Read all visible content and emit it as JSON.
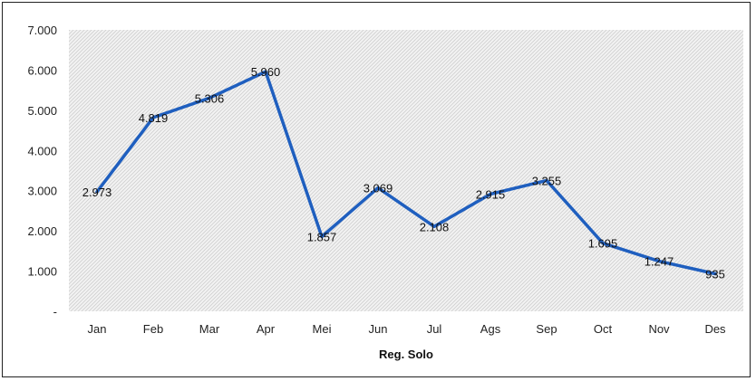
{
  "chart_data": {
    "type": "line",
    "title": "",
    "xlabel": "Reg. Solo",
    "ylabel": "",
    "categories": [
      "Jan",
      "Feb",
      "Mar",
      "Apr",
      "Mei",
      "Jun",
      "Jul",
      "Ags",
      "Sep",
      "Oct",
      "Nov",
      "Des"
    ],
    "series": [
      {
        "values": [
          2973,
          4819,
          5306,
          5960,
          1857,
          3069,
          2108,
          2915,
          3255,
          1695,
          1247,
          935
        ],
        "color": "#1f5fbf"
      }
    ],
    "data_labels": [
      "2.973",
      "4.819",
      "5.306",
      "5.960",
      "1.857",
      "3.069",
      "2.108",
      "2.915",
      "3.255",
      "1.695",
      "1.247",
      "935"
    ],
    "ylim": [
      0,
      7000
    ],
    "yticks": [
      0,
      1000,
      2000,
      3000,
      4000,
      5000,
      6000,
      7000
    ],
    "ytick_labels": [
      "-",
      "1.000",
      "2.000",
      "3.000",
      "4.000",
      "5.000",
      "6.000",
      "7.000"
    ],
    "plot_background": "hatched-light-gray",
    "grid": false,
    "legend": "none"
  }
}
